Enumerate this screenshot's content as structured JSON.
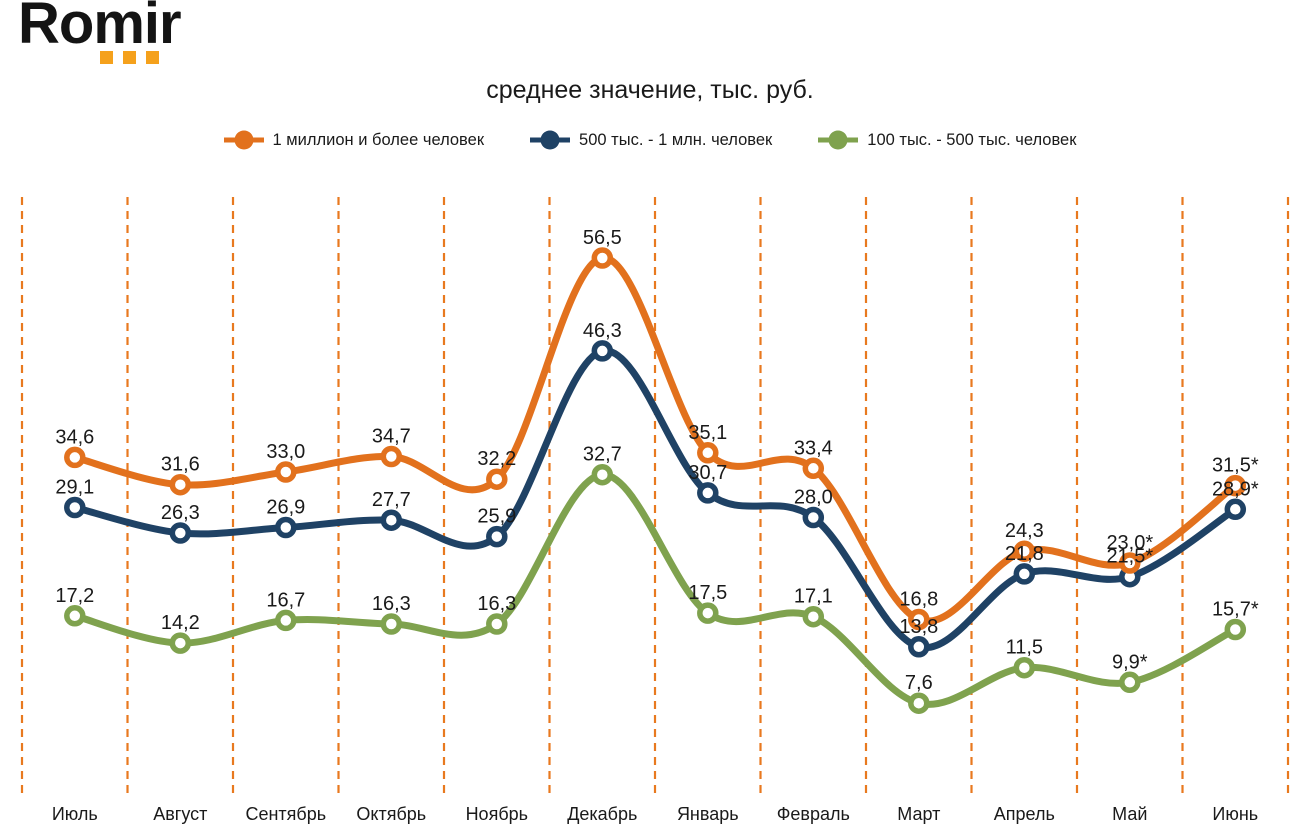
{
  "logo": {
    "text": "Romir"
  },
  "title": "среднее значение, тыс. руб.",
  "colors": {
    "accent_orange": "#E2711D",
    "navy": "#1F4265",
    "olive": "#7FA24E",
    "grid_orange": "#E8791F",
    "logo_dots": "#F5A11C",
    "text": "#1A1A1A"
  },
  "chart_data": {
    "type": "line",
    "title": "среднее значение, тыс. руб.",
    "x": [
      "Июль",
      "Август",
      "Сентябрь",
      "Октябрь",
      "Ноябрь",
      "Декабрь",
      "Январь",
      "Февраль",
      "Март",
      "Апрель",
      "Май",
      "Июнь"
    ],
    "series": [
      {
        "name": "1 миллион и более человек",
        "color": "#E2711D",
        "values": [
          34.6,
          31.6,
          33.0,
          34.7,
          32.2,
          56.5,
          35.1,
          33.4,
          16.8,
          24.3,
          23.0,
          31.5
        ],
        "labels": [
          "34,6",
          "31,6",
          "33,0",
          "34,7",
          "32,2",
          "56,5",
          "35,1",
          "33,4",
          "16,8",
          "24,3",
          "23,0*",
          "31,5*"
        ]
      },
      {
        "name": "500 тыс. - 1 млн. человек",
        "color": "#1F4265",
        "values": [
          29.1,
          26.3,
          26.9,
          27.7,
          25.9,
          46.3,
          30.7,
          28.0,
          13.8,
          21.8,
          21.5,
          28.9
        ],
        "labels": [
          "29,1",
          "26,3",
          "26,9",
          "27,7",
          "25,9",
          "46,3",
          "30,7",
          "28,0",
          "13,8",
          "21,8",
          "21,5*",
          "28,9*"
        ]
      },
      {
        "name": "100 тыс. - 500 тыс. человек",
        "color": "#7FA24E",
        "values": [
          17.2,
          14.2,
          16.7,
          16.3,
          16.3,
          32.7,
          17.5,
          17.1,
          7.6,
          11.5,
          9.9,
          15.7
        ],
        "labels": [
          "17,2",
          "14,2",
          "16,7",
          "16,3",
          "16,3",
          "32,7",
          "17,5",
          "17,1",
          "7,6",
          "11,5",
          "9,9*",
          "15,7*"
        ]
      }
    ],
    "ylim": [
      -2.7,
      63.2
    ],
    "yaxis_visible": false,
    "grid": {
      "style": "vertical-dashed",
      "color": "#E8791F"
    },
    "legend_position": "top",
    "label_decimal": "comma",
    "line_smoothing": true
  }
}
